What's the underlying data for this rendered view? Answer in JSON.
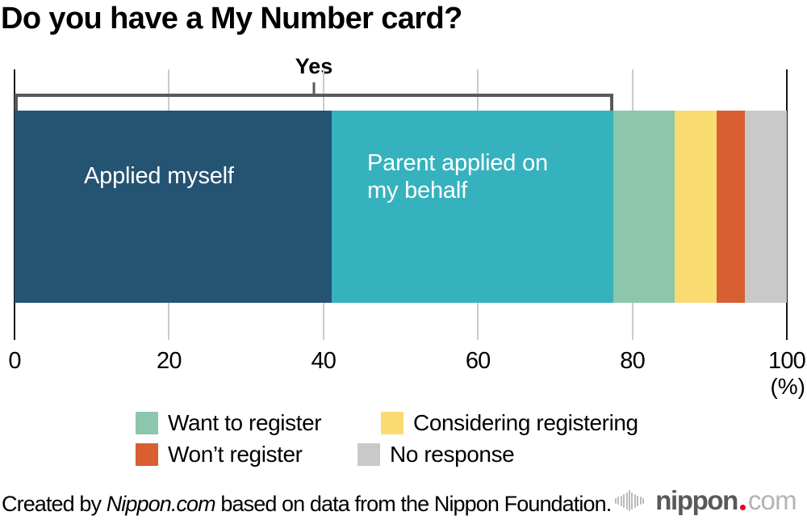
{
  "title": "Do you have a My Number card?",
  "chart_data": {
    "type": "bar",
    "stacked": true,
    "orientation": "horizontal",
    "title": "Do you have a My Number card?",
    "unit": "%",
    "xlim": [
      0,
      100
    ],
    "x_ticks": [
      "0",
      "20",
      "40",
      "60",
      "80",
      "100"
    ],
    "x_unit_label": "(%)",
    "grid": true,
    "legend_position": "bottom",
    "segments": [
      {
        "label": "Applied myself",
        "value": 41.1,
        "color": "#255372",
        "group": "Yes"
      },
      {
        "label": "Parent applied on my behalf",
        "value": 36.4,
        "color": "#36b2be",
        "group": "Yes"
      },
      {
        "label": "Want to register",
        "value": 8.0,
        "color": "#8cc6ac"
      },
      {
        "label": "Considering registering",
        "value": 5.4,
        "color": "#fadb71"
      },
      {
        "label": "Won’t register",
        "value": 3.7,
        "color": "#d75f31"
      },
      {
        "label": "No response",
        "value": 5.4,
        "color": "#c9c9c9"
      }
    ],
    "bracket": {
      "label": "Yes",
      "from": 0,
      "to": 77.5
    }
  },
  "bar_overlay": {
    "segment1_label": "Applied myself",
    "segment2_line1": "Parent applied on",
    "segment2_line2": "my behalf"
  },
  "legend": {
    "items": [
      {
        "label": "Want to register",
        "color": "#8cc6ac"
      },
      {
        "label": "Considering registering",
        "color": "#fadb71"
      },
      {
        "label": "Won’t register",
        "color": "#d75f31"
      },
      {
        "label": "No response",
        "color": "#c9c9c9"
      }
    ]
  },
  "footer": {
    "credit_prefix": "Created by ",
    "credit_source": "Nippon.com",
    "credit_suffix": " based on data from the Nippon Foundation.",
    "logo": {
      "name": "nippon",
      "tld": "com"
    }
  }
}
